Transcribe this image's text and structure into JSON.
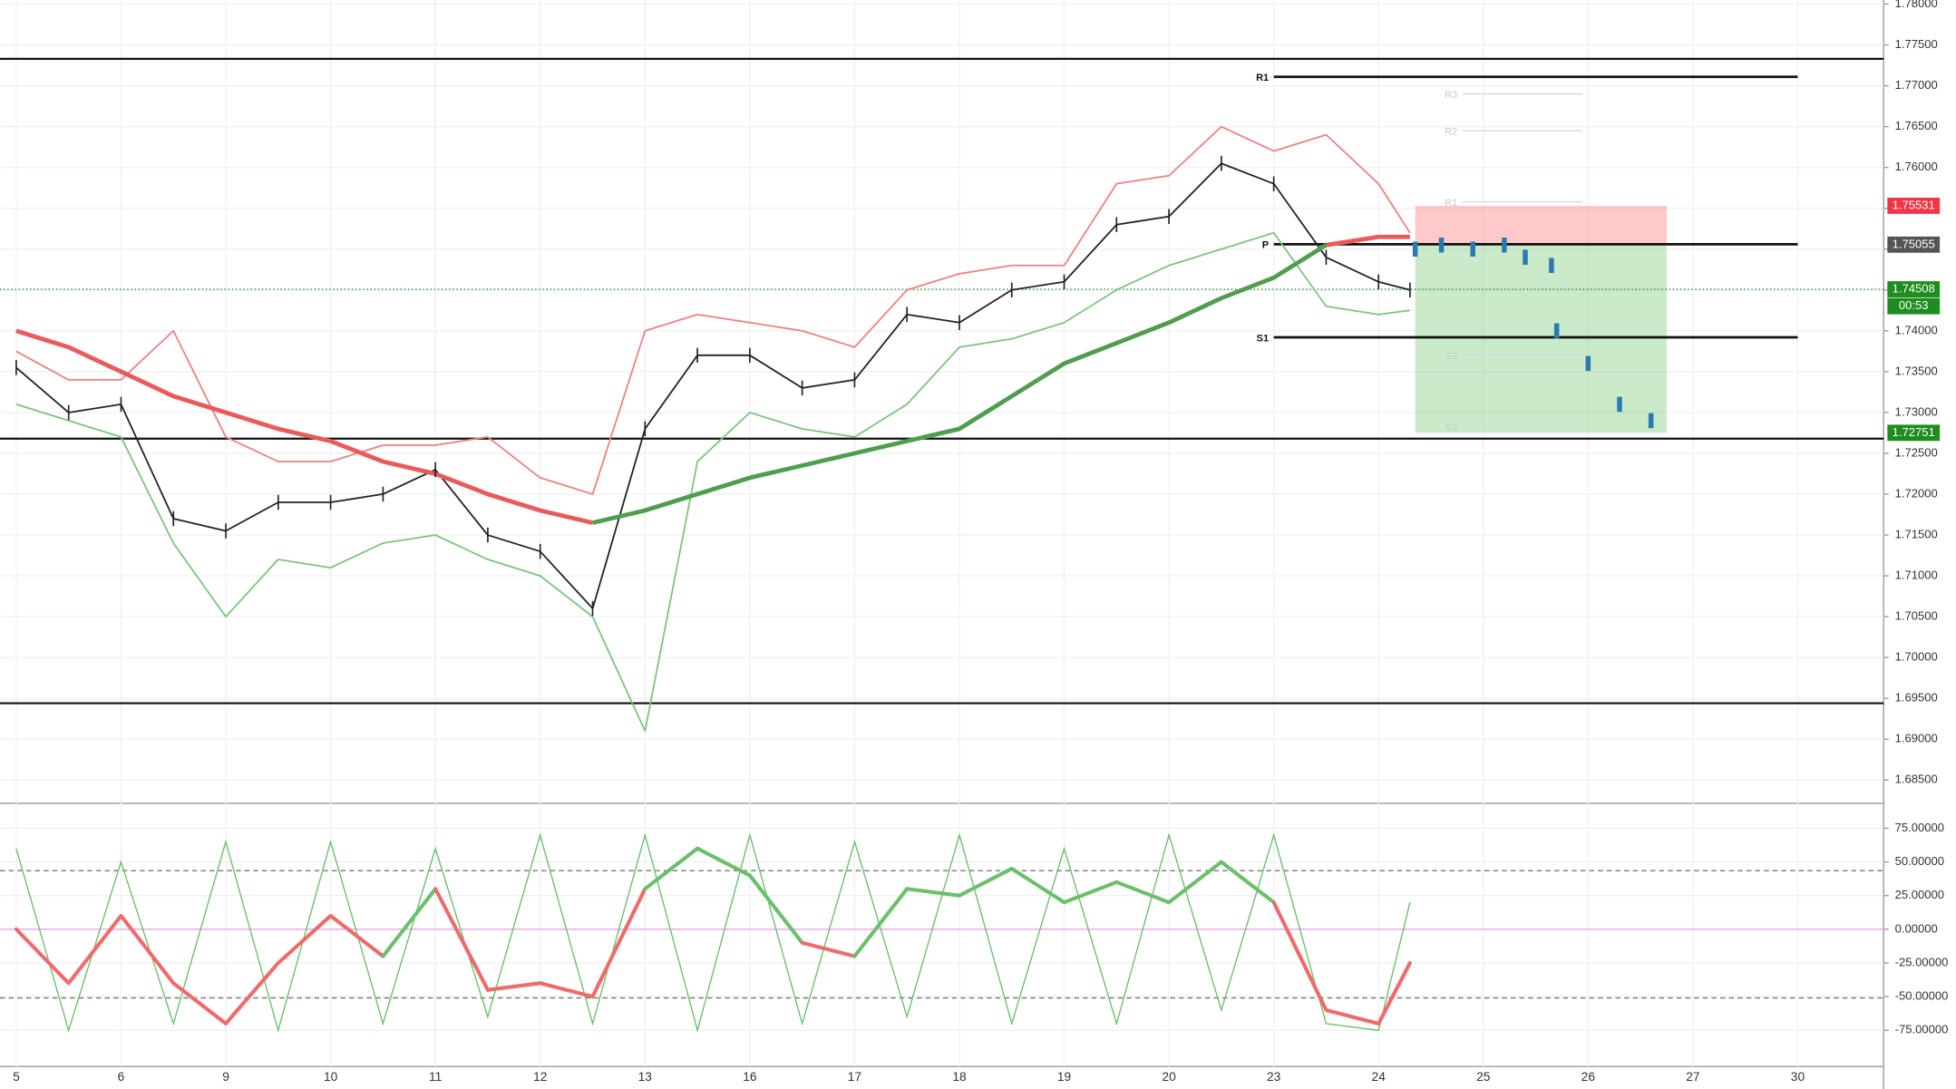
{
  "chart_data": [
    {
      "type": "ohlc-line",
      "xlim": [
        -0.155,
        17.82
      ],
      "ylim": [
        1.6823,
        1.7805
      ],
      "xticks": [
        {
          "value": 0,
          "label": "5"
        },
        {
          "value": 1,
          "label": "6"
        },
        {
          "value": 2,
          "label": "9"
        },
        {
          "value": 3,
          "label": "10"
        },
        {
          "value": 4,
          "label": "11"
        },
        {
          "value": 5,
          "label": "12"
        },
        {
          "value": 6,
          "label": "13"
        },
        {
          "value": 7,
          "label": "16"
        },
        {
          "value": 8,
          "label": "17"
        },
        {
          "value": 9,
          "label": "18"
        },
        {
          "value": 10,
          "label": "19"
        },
        {
          "value": 11,
          "label": "20"
        },
        {
          "value": 12,
          "label": "23"
        },
        {
          "value": 13,
          "label": "24"
        },
        {
          "value": 14,
          "label": "25"
        },
        {
          "value": 15,
          "label": "26"
        },
        {
          "value": 16,
          "label": "27"
        },
        {
          "value": 17,
          "label": "30"
        }
      ],
      "yticks": [
        {
          "value": 1.78,
          "label": "1.78000"
        },
        {
          "value": 1.775,
          "label": "1.77500"
        },
        {
          "value": 1.77,
          "label": "1.77000"
        },
        {
          "value": 1.765,
          "label": "1.76500"
        },
        {
          "value": 1.76,
          "label": "1.76000"
        },
        {
          "value": 1.755,
          "label": "1.75500"
        },
        {
          "value": 1.75,
          "label": "1.75000"
        },
        {
          "value": 1.745,
          "label": "1.74500"
        },
        {
          "value": 1.74,
          "label": "1.74000"
        },
        {
          "value": 1.735,
          "label": "1.73500"
        },
        {
          "value": 1.73,
          "label": "1.73000"
        },
        {
          "value": 1.725,
          "label": "1.72500"
        },
        {
          "value": 1.72,
          "label": "1.72000"
        },
        {
          "value": 1.715,
          "label": "1.71500"
        },
        {
          "value": 1.71,
          "label": "1.71000"
        },
        {
          "value": 1.705,
          "label": "1.70500"
        },
        {
          "value": 1.7,
          "label": "1.70000"
        },
        {
          "value": 1.695,
          "label": "1.69500"
        },
        {
          "value": 1.69,
          "label": "1.69000"
        },
        {
          "value": 1.685,
          "label": "1.68500"
        }
      ],
      "grid": true,
      "x": [
        0,
        0.5,
        1,
        1.5,
        2,
        2.5,
        3,
        3.5,
        4,
        4.5,
        5,
        5.5,
        6,
        6.5,
        7,
        7.5,
        8,
        8.5,
        9,
        9.5,
        10,
        10.5,
        11,
        11.5,
        12,
        12.5,
        13,
        13.3
      ],
      "series": [
        {
          "color": "#f08080",
          "values": [
            1.7375,
            1.734,
            1.734,
            1.74,
            1.727,
            1.724,
            1.724,
            1.726,
            1.726,
            1.727,
            1.722,
            1.72,
            1.74,
            1.742,
            1.741,
            1.74,
            1.738,
            1.745,
            1.747,
            1.748,
            1.748,
            1.758,
            1.759,
            1.765,
            1.762,
            1.764,
            1.758,
            1.752
          ]
        },
        {
          "color": "#7cc47c",
          "values": [
            1.731,
            1.729,
            1.727,
            1.714,
            1.705,
            1.712,
            1.711,
            1.714,
            1.715,
            1.712,
            1.71,
            1.705,
            1.691,
            1.724,
            1.73,
            1.728,
            1.727,
            1.731,
            1.738,
            1.739,
            1.741,
            1.745,
            1.748,
            1.75,
            1.752,
            1.743,
            1.742,
            1.7425
          ]
        },
        {
          "color": "#222222",
          "values": [
            1.7355,
            1.73,
            1.731,
            1.717,
            1.7155,
            1.719,
            1.719,
            1.72,
            1.723,
            1.715,
            1.713,
            1.706,
            1.728,
            1.737,
            1.737,
            1.733,
            1.734,
            1.742,
            1.741,
            1.745,
            1.746,
            1.753,
            1.754,
            1.7605,
            1.758,
            1.749,
            1.746,
            1.745
          ]
        },
        {
          "color": "#ea5a5a",
          "values": [
            1.74,
            1.738,
            1.735,
            1.732,
            1.73,
            1.728,
            1.7265,
            1.724,
            1.7225,
            1.72,
            1.718,
            1.7165,
            null,
            null,
            null,
            null,
            null,
            null,
            null,
            null,
            null,
            null,
            null,
            null,
            null,
            1.7505,
            1.7515,
            1.7515
          ]
        },
        {
          "color": "#4f9e4f",
          "values": [
            null,
            null,
            null,
            null,
            null,
            null,
            null,
            null,
            null,
            null,
            null,
            1.7165,
            1.718,
            1.72,
            1.722,
            1.7235,
            1.725,
            1.7265,
            1.728,
            1.732,
            1.736,
            1.7385,
            1.741,
            1.744,
            1.7465,
            1.7505,
            null,
            null
          ]
        }
      ],
      "projection": {
        "color": "#2a7ab0",
        "x": [
          13.35,
          13.6,
          13.9,
          14.2,
          14.4,
          14.65,
          14.7,
          15.0,
          15.3,
          15.6
        ],
        "values": [
          1.75,
          1.7505,
          1.75,
          1.7505,
          1.749,
          1.748,
          1.74,
          1.736,
          1.731,
          1.729
        ]
      },
      "levels": [
        1.7733,
        1.7268,
        1.6944
      ],
      "pivots": [
        {
          "label": "R1",
          "value": 1.7711
        },
        {
          "label": "P",
          "value": 1.7506
        },
        {
          "label": "S1",
          "value": 1.7392
        }
      ],
      "faint_pivots": [
        {
          "label": "R3",
          "value": 1.769
        },
        {
          "label": "R2",
          "value": 1.7645
        },
        {
          "label": "R1",
          "value": 1.7558
        },
        {
          "label": "S2",
          "value": 1.737
        },
        {
          "label": "S3",
          "value": 1.7283
        }
      ],
      "position": {
        "x_start": 13.35,
        "x_end": 15.75,
        "entry": 1.75055,
        "stop": 1.75531,
        "target": 1.72751
      },
      "current_price": 1.74508,
      "price_tags": [
        {
          "label": "1.75531",
          "value": 1.75531,
          "color": "#f23645"
        },
        {
          "label": "1.75055",
          "value": 1.75055,
          "color": "#555555"
        },
        {
          "label": "1.74508",
          "value": 1.74508,
          "color": "#1e8c1e"
        },
        {
          "label": "1.72751",
          "value": 1.72751,
          "color": "#1e8c1e"
        }
      ],
      "countdown": "00:53"
    },
    {
      "type": "oscillator",
      "ylim": [
        -101.9,
        92.6
      ],
      "yticks": [
        {
          "value": 75,
          "label": "75.00000"
        },
        {
          "value": 50,
          "label": "50.00000"
        },
        {
          "value": 25,
          "label": "25.00000"
        },
        {
          "value": 0,
          "label": "0.00000"
        },
        {
          "value": -25,
          "label": "-25.00000"
        },
        {
          "value": -50,
          "label": "-50.00000"
        },
        {
          "value": -75,
          "label": "-75.00000"
        }
      ],
      "levels": [
        43.5,
        -51
      ],
      "x": [
        0,
        0.5,
        1,
        1.5,
        2,
        2.5,
        3,
        3.5,
        4,
        4.5,
        5,
        5.5,
        6,
        6.5,
        7,
        7.5,
        8,
        8.5,
        9,
        9.5,
        10,
        10.5,
        11,
        11.5,
        12,
        12.5,
        13,
        13.3
      ],
      "fast": {
        "color": "#6cbf6c",
        "values": [
          60,
          -75,
          50,
          -70,
          65,
          -75,
          65,
          -70,
          60,
          -65,
          70,
          -70,
          70,
          -75,
          70,
          -70,
          65,
          -65,
          70,
          -70,
          60,
          -70,
          70,
          -60,
          70,
          -70,
          -75,
          20
        ]
      },
      "slow": {
        "up_color": "#6cbf6c",
        "down_color": "#ef6b6b",
        "values": [
          0,
          -40,
          10,
          -40,
          -70,
          -25,
          10,
          -20,
          30,
          -45,
          -40,
          -50,
          30,
          60,
          40,
          -10,
          -20,
          30,
          25,
          45,
          20,
          35,
          20,
          50,
          20,
          -60,
          -70,
          -25
        ]
      }
    }
  ]
}
